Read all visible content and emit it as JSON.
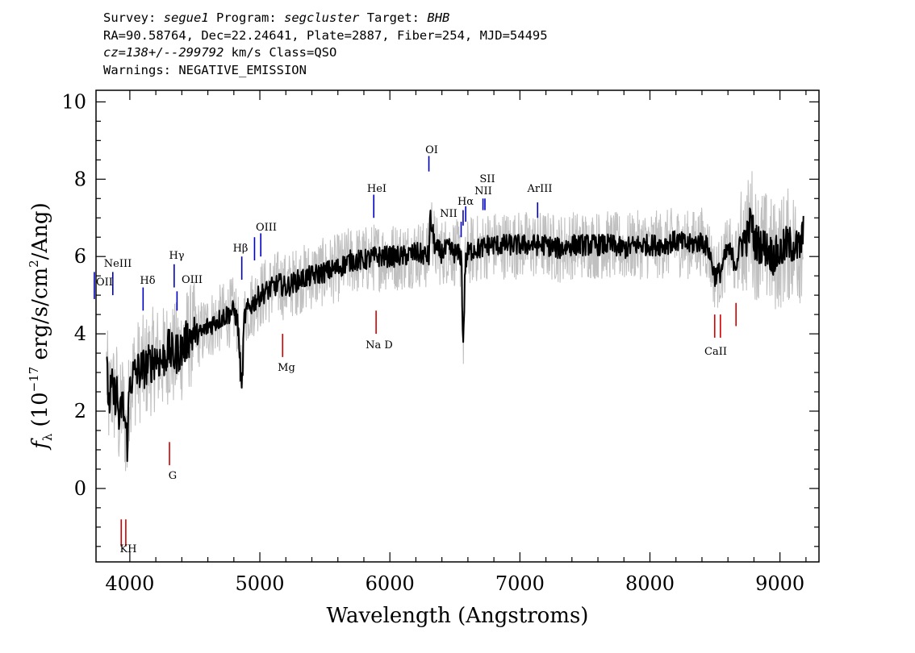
{
  "header": {
    "survey_key": "Survey:",
    "survey": "segue1",
    "program_key": "Program:",
    "program": "segcluster",
    "target_key": "Target:",
    "target": "BHB",
    "line2": "RA=90.58764, Dec=22.24641, Plate=2887, Fiber=254, MJD=54495",
    "cz_key": "cz=",
    "cz_value": "138+/--299792",
    "cz_rest": "km/s Class=QSO",
    "warnings": "Warnings: NEGATIVE_EMISSION"
  },
  "chart_data": {
    "type": "line",
    "title": "",
    "xlabel": "Wavelength (Angstroms)",
    "ylabel_main": "(10",
    "ylabel_exp": "−17",
    "ylabel_mid": " erg/s/cm",
    "ylabel_exp2": "2",
    "ylabel_end": "/Ang)",
    "ylabel_symbol": "f",
    "ylabel_sub": "λ",
    "xlim": [
      3740,
      9300
    ],
    "ylim": [
      -1.9,
      10.3
    ],
    "x_ticks": [
      4000,
      5000,
      6000,
      7000,
      8000,
      9000
    ],
    "x_tick_labels": [
      "4000",
      "5000",
      "6000",
      "7000",
      "8000",
      "9000"
    ],
    "y_ticks": [
      0,
      2,
      4,
      6,
      8,
      10
    ],
    "y_tick_labels": [
      "0",
      "2",
      "4",
      "6",
      "8",
      "10"
    ],
    "colors": {
      "flux": "#000000",
      "error": "#c0c0c0",
      "emission": "#0000c0",
      "absorption": "#d00000"
    },
    "series": [
      {
        "name": "",
        "style": "black",
        "x": [
          3820,
          3840,
          3860,
          3880,
          3900,
          3920,
          3940,
          3960,
          3980,
          4000,
          4050,
          4100,
          4150,
          4200,
          4250,
          4300,
          4340,
          4360,
          4400,
          4450,
          4500,
          4550,
          4600,
          4650,
          4700,
          4750,
          4800,
          4830,
          4861,
          4880,
          4900,
          4950,
          5000,
          5050,
          5100,
          5150,
          5200,
          5300,
          5400,
          5500,
          5600,
          5700,
          5800,
          5900,
          6000,
          6100,
          6200,
          6300,
          6310,
          6350,
          6400,
          6450,
          6500,
          6550,
          6563,
          6580,
          6600,
          6650,
          6700,
          6750,
          6800,
          6900,
          7000,
          7100,
          7200,
          7300,
          7400,
          7500,
          7600,
          7700,
          7800,
          7900,
          8000,
          8100,
          8200,
          8300,
          8400,
          8450,
          8498,
          8542,
          8600,
          8662,
          8700,
          8750,
          8780,
          8800,
          8850,
          8900,
          8950,
          9000,
          9050,
          9100,
          9150,
          9180
        ],
        "y": [
          3.1,
          2.2,
          2.6,
          2.4,
          2.5,
          1.6,
          2.3,
          1.8,
          1.2,
          2.8,
          3.0,
          3.1,
          3.2,
          3.4,
          3.3,
          3.6,
          3.4,
          3.5,
          3.6,
          3.9,
          4.0,
          4.0,
          4.2,
          4.3,
          4.4,
          4.5,
          4.6,
          4.3,
          2.5,
          4.4,
          4.6,
          4.8,
          5.0,
          5.1,
          5.2,
          5.3,
          5.2,
          5.4,
          5.5,
          5.6,
          5.7,
          5.9,
          5.9,
          6.0,
          6.0,
          6.0,
          6.1,
          6.0,
          7.0,
          6.2,
          6.1,
          6.2,
          6.1,
          6.0,
          3.6,
          5.8,
          6.1,
          6.2,
          6.2,
          6.3,
          6.3,
          6.3,
          6.3,
          6.3,
          6.3,
          6.2,
          6.3,
          6.3,
          6.3,
          6.3,
          6.2,
          6.3,
          6.3,
          6.3,
          6.4,
          6.3,
          6.4,
          6.2,
          5.5,
          5.6,
          6.2,
          5.8,
          6.4,
          6.5,
          7.0,
          6.4,
          6.3,
          6.2,
          6.0,
          6.1,
          6.3,
          6.3,
          6.2,
          6.6
        ]
      }
    ],
    "emission_lines": [
      {
        "label": "OII",
        "x": 3727,
        "ylow": 4.9,
        "yhigh": 5.6
      },
      {
        "label": "NeIII",
        "x": 3869,
        "ylow": 5.0,
        "yhigh": 5.6
      },
      {
        "label": "Hδ",
        "x": 4102,
        "ylow": 4.6,
        "yhigh": 5.2
      },
      {
        "label": "Hγ",
        "x": 4341,
        "ylow": 5.2,
        "yhigh": 5.8
      },
      {
        "label": "OIII",
        "x": 4363,
        "ylow": 4.6,
        "yhigh": 5.1
      },
      {
        "label": "Hβ",
        "x": 4861,
        "ylow": 5.4,
        "yhigh": 6.0
      },
      {
        "label": "OIII",
        "x": 4959,
        "ylow": 5.9,
        "yhigh": 6.5
      },
      {
        "label": "OIII",
        "x": 5007,
        "ylow": 6.0,
        "yhigh": 6.6
      },
      {
        "label": "HeI",
        "x": 5876,
        "ylow": 7.0,
        "yhigh": 7.6
      },
      {
        "label": "OI",
        "x": 6300,
        "ylow": 8.2,
        "yhigh": 8.6
      },
      {
        "label": "NII",
        "x": 6548,
        "ylow": 6.5,
        "yhigh": 6.9
      },
      {
        "label": "Hα",
        "x": 6563,
        "ylow": 6.8,
        "yhigh": 7.2
      },
      {
        "label": "NII",
        "x": 6583,
        "ylow": 6.9,
        "yhigh": 7.3
      },
      {
        "label": "SII",
        "x": 6716,
        "ylow": 7.2,
        "yhigh": 7.5
      },
      {
        "label": "SII",
        "x": 6731,
        "ylow": 7.2,
        "yhigh": 7.5
      },
      {
        "label": "ArIII",
        "x": 7136,
        "ylow": 7.0,
        "yhigh": 7.4
      }
    ],
    "absorption_lines": [
      {
        "label": "K",
        "x": 3934,
        "ylow": -1.5,
        "yhigh": -0.8
      },
      {
        "label": "H",
        "x": 3969,
        "ylow": -1.5,
        "yhigh": -0.8
      },
      {
        "label": "G",
        "x": 4305,
        "ylow": 0.6,
        "yhigh": 1.2
      },
      {
        "label": "Mg",
        "x": 5175,
        "ylow": 3.4,
        "yhigh": 4.0
      },
      {
        "label": "Na D",
        "x": 5894,
        "ylow": 4.0,
        "yhigh": 4.6
      },
      {
        "label": "CaII",
        "x": 8498,
        "ylow": 3.9,
        "yhigh": 4.5
      },
      {
        "label": "CaII",
        "x": 8542,
        "ylow": 3.9,
        "yhigh": 4.5
      },
      {
        "label": "CaII",
        "x": 8662,
        "ylow": 4.2,
        "yhigh": 4.8
      }
    ],
    "line_label_texts": {
      "oii": "OII",
      "neiii": "NeIII",
      "hdelta": "Hδ",
      "hgamma": "Hγ",
      "oiii_4363": "OIII",
      "hbeta": "Hβ",
      "oiii": "OIII",
      "hei": "HeI",
      "oi": "OI",
      "nii": "NII",
      "halpha": "Hα",
      "nii2": "NII",
      "sii": "SII",
      "ariii": "ArIII",
      "kh": "KH",
      "g": "G",
      "mg": "Mg",
      "nad": "Na D",
      "caii": "CaII"
    }
  }
}
